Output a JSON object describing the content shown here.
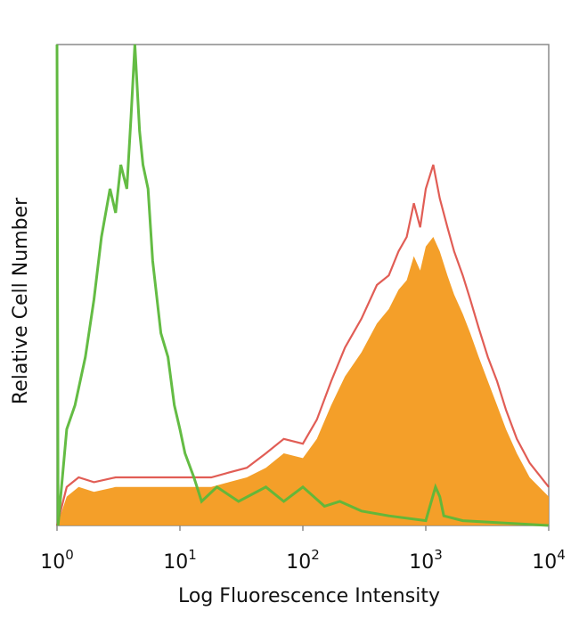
{
  "chart_data": {
    "type": "area",
    "title": "",
    "xlabel": "Log Fluorescence Intensity",
    "ylabel": "Relative Cell Number",
    "xscale": "log",
    "xlim": [
      1,
      10000
    ],
    "ylim": [
      0,
      100
    ],
    "x_ticks": [
      {
        "base": "10",
        "exp": "0"
      },
      {
        "base": "10",
        "exp": "1"
      },
      {
        "base": "10",
        "exp": "2"
      },
      {
        "base": "10",
        "exp": "3"
      },
      {
        "base": "10",
        "exp": "4"
      }
    ],
    "grid": false,
    "legend": "none",
    "series": [
      {
        "style": "filled",
        "color": "#f39a1e",
        "x": [
          1,
          1.2,
          1.5,
          2,
          3,
          5,
          8,
          12,
          18,
          25,
          35,
          50,
          70,
          100,
          130,
          170,
          220,
          300,
          400,
          500,
          600,
          700,
          800,
          900,
          1000,
          1150,
          1300,
          1500,
          1700,
          2000,
          2300,
          2700,
          3200,
          3800,
          4500,
          5500,
          7000,
          10000
        ],
        "values": [
          0,
          6,
          8,
          7,
          8,
          8,
          8,
          8,
          8,
          9,
          10,
          12,
          15,
          14,
          18,
          25,
          31,
          36,
          42,
          45,
          49,
          51,
          56,
          53,
          58,
          60,
          57,
          52,
          48,
          44,
          40,
          35,
          30,
          25,
          20,
          15,
          10,
          6
        ]
      },
      {
        "style": "jagged-outline",
        "color": "#d9342b",
        "x": [
          1,
          1.2,
          1.5,
          2,
          3,
          5,
          8,
          12,
          18,
          25,
          35,
          50,
          70,
          100,
          130,
          170,
          220,
          300,
          400,
          500,
          600,
          700,
          800,
          900,
          1000,
          1150,
          1300,
          1500,
          1700,
          2000,
          2300,
          2700,
          3200,
          3800,
          4500,
          5500,
          7000,
          10000
        ],
        "values": [
          0,
          8,
          10,
          9,
          10,
          10,
          10,
          10,
          10,
          11,
          12,
          15,
          18,
          17,
          22,
          30,
          37,
          43,
          50,
          52,
          57,
          60,
          67,
          62,
          70,
          75,
          68,
          62,
          57,
          52,
          47,
          41,
          35,
          30,
          24,
          18,
          13,
          8
        ]
      },
      {
        "style": "outline",
        "color": "#5cb83a",
        "x": [
          1,
          1.02,
          1.2,
          1.4,
          1.7,
          2,
          2.3,
          2.7,
          3,
          3.3,
          3.7,
          4,
          4.3,
          4.7,
          5,
          5.5,
          6,
          7,
          8,
          9,
          10,
          11,
          13,
          15,
          20,
          30,
          50,
          70,
          100,
          150,
          200,
          300,
          500,
          1000,
          1200,
          1300,
          1400,
          2000,
          10000
        ],
        "values": [
          100,
          0,
          20,
          25,
          35,
          47,
          60,
          70,
          65,
          75,
          70,
          85,
          100,
          82,
          75,
          70,
          55,
          40,
          35,
          25,
          20,
          15,
          10,
          5,
          8,
          5,
          8,
          5,
          8,
          4,
          5,
          3,
          2,
          1,
          8,
          6,
          2,
          1,
          0
        ]
      }
    ]
  }
}
